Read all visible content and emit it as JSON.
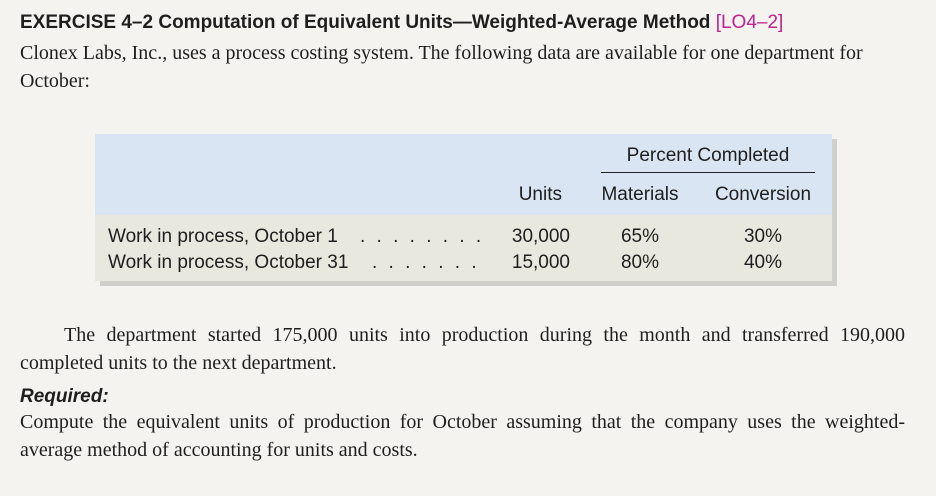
{
  "exercise": {
    "title": "EXERCISE 4–2 Computation of Equivalent Units—Weighted-Average Method",
    "ref": "[LO4–2]",
    "ref_color": "#c0238e",
    "intro": "Clonex Labs, Inc., uses a process costing system. The following data are available for one department for October:"
  },
  "table": {
    "group_header": "Percent Completed",
    "columns": [
      "Units",
      "Materials",
      "Conversion"
    ],
    "header_bg": "#d9e5f3",
    "body_bg": "#e8e8de",
    "rows": [
      {
        "label": "Work in process, October 1",
        "units": "30,000",
        "materials": "65%",
        "conversion": "30%"
      },
      {
        "label": "Work in process, October 31",
        "units": "15,000",
        "materials": "80%",
        "conversion": "40%"
      }
    ]
  },
  "body": {
    "paragraph": "The department started 175,000 units into production during the month and transferred 190,000 completed units to the next department."
  },
  "required": {
    "heading": "Required:",
    "text": "Compute the equivalent units of production for October assuming that the company uses the weighted-average method of accounting for units and costs."
  }
}
